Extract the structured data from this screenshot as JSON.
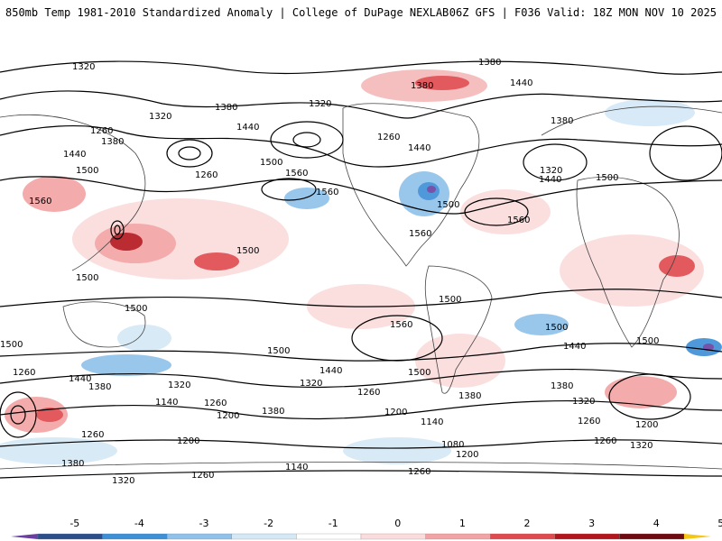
{
  "header": {
    "title_left": "850mb Temp 1981-2010 Standardized Anomaly | College of DuPage NEXLAB",
    "title_right": "06Z GFS | F036 Valid: 18Z MON NOV 10 2025"
  },
  "colorbar": {
    "ticks": [
      "-5",
      "-4",
      "-3",
      "-2",
      "-1",
      "0",
      "1",
      "2",
      "3",
      "4",
      "5"
    ],
    "colors": [
      "#6a3fa0",
      "#2c4f8c",
      "#3d8fd6",
      "#8fc1ea",
      "#d4e8f6",
      "#ffffff",
      "#fbdcdc",
      "#f2a3a3",
      "#e0494d",
      "#b3151c",
      "#6e0a10",
      "#f5c518"
    ]
  },
  "contour_labels": [
    "1320",
    "1380",
    "1440",
    "1260",
    "1500",
    "1560",
    "1200",
    "1140",
    "1080"
  ],
  "colors": {
    "warm": "#e96b6e",
    "cool": "#7fb5e5",
    "contour": "#000000",
    "coast": "#444444"
  }
}
